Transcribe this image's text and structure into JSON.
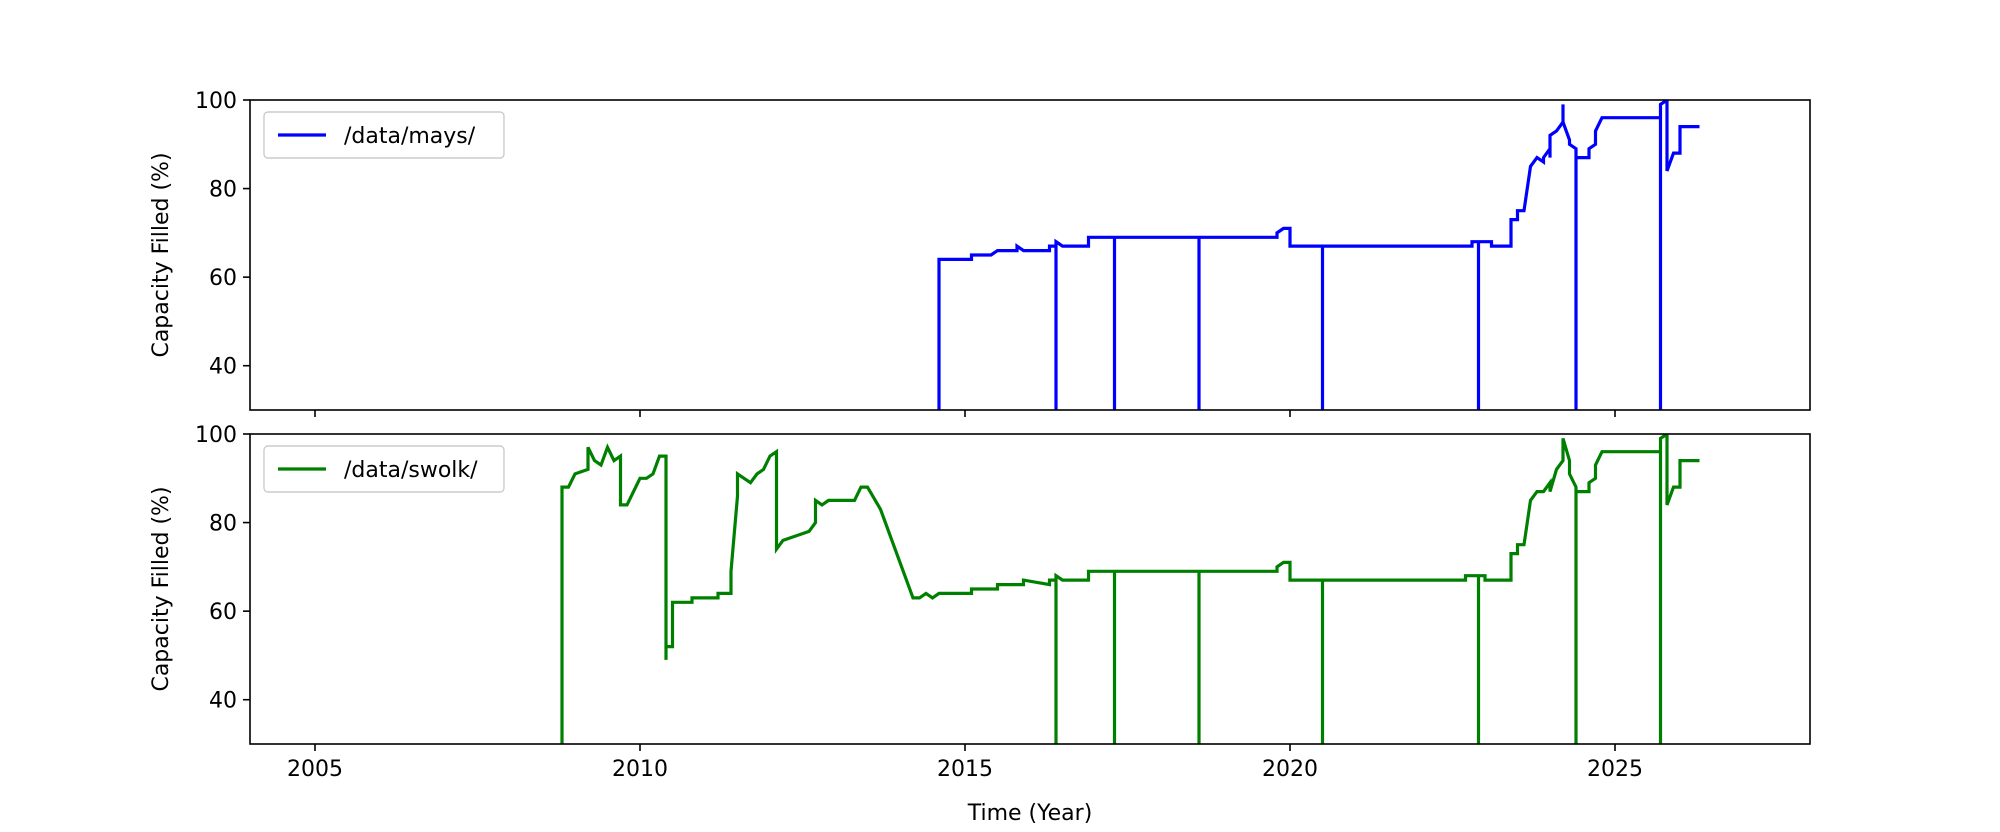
{
  "chart_data": {
    "type": "line",
    "xlabel": "Time (Year)",
    "x_ticks": [
      2005,
      2010,
      2015,
      2020,
      2025
    ],
    "xlim": [
      2004.0,
      2028.0
    ],
    "y_ticks": [
      40,
      60,
      80,
      100
    ],
    "panels": [
      {
        "ylabel": "Capacity Filled (%)",
        "ylim": [
          30,
          100
        ],
        "legend_position": "upper left",
        "grid": false,
        "series": [
          {
            "name": "/data/mays/",
            "color": "#0000ff",
            "points": [
              [
                2014.6,
                30
              ],
              [
                2014.6,
                64
              ],
              [
                2014.8,
                64
              ],
              [
                2015.1,
                64
              ],
              [
                2015.1,
                65
              ],
              [
                2015.4,
                65
              ],
              [
                2015.5,
                66
              ],
              [
                2015.8,
                66
              ],
              [
                2015.8,
                67
              ],
              [
                2015.9,
                66
              ],
              [
                2016.3,
                66
              ],
              [
                2016.3,
                67
              ],
              [
                2016.4,
                67
              ],
              [
                2016.4,
                30
              ],
              [
                2016.4,
                68
              ],
              [
                2016.5,
                67
              ],
              [
                2016.9,
                67
              ],
              [
                2016.9,
                69
              ],
              [
                2017.2,
                69
              ],
              [
                2017.3,
                69
              ],
              [
                2017.3,
                30
              ],
              [
                2017.3,
                69
              ],
              [
                2018.6,
                69
              ],
              [
                2018.6,
                30
              ],
              [
                2018.6,
                69
              ],
              [
                2019.8,
                69
              ],
              [
                2019.8,
                70
              ],
              [
                2019.9,
                71
              ],
              [
                2020.0,
                71
              ],
              [
                2020.0,
                67
              ],
              [
                2020.4,
                67
              ],
              [
                2020.5,
                67
              ],
              [
                2020.5,
                30
              ],
              [
                2020.5,
                67
              ],
              [
                2022.8,
                67
              ],
              [
                2022.8,
                68
              ],
              [
                2022.9,
                68
              ],
              [
                2022.9,
                30
              ],
              [
                2022.9,
                68
              ],
              [
                2023.1,
                68
              ],
              [
                2023.1,
                67
              ],
              [
                2023.4,
                67
              ],
              [
                2023.4,
                73
              ],
              [
                2023.5,
                73
              ],
              [
                2023.5,
                75
              ],
              [
                2023.6,
                75
              ],
              [
                2023.7,
                85
              ],
              [
                2023.8,
                87
              ],
              [
                2023.9,
                86
              ],
              [
                2023.9,
                87
              ],
              [
                2024.0,
                89
              ],
              [
                2024.0,
                87
              ],
              [
                2024.0,
                92
              ],
              [
                2024.1,
                93
              ],
              [
                2024.2,
                95
              ],
              [
                2024.2,
                99
              ],
              [
                2024.2,
                95
              ],
              [
                2024.3,
                91
              ],
              [
                2024.3,
                90
              ],
              [
                2024.4,
                89
              ],
              [
                2024.4,
                87
              ],
              [
                2024.4,
                30
              ],
              [
                2024.4,
                87
              ],
              [
                2024.6,
                87
              ],
              [
                2024.6,
                89
              ],
              [
                2024.7,
                90
              ],
              [
                2024.7,
                93
              ],
              [
                2024.8,
                96
              ],
              [
                2025.3,
                96
              ],
              [
                2025.7,
                96
              ],
              [
                2025.7,
                30
              ],
              [
                2025.7,
                99
              ],
              [
                2025.8,
                100
              ],
              [
                2025.8,
                91
              ],
              [
                2025.8,
                84
              ],
              [
                2025.9,
                88
              ],
              [
                2026.0,
                88
              ],
              [
                2026.0,
                94
              ],
              [
                2026.3,
                94
              ]
            ]
          }
        ]
      },
      {
        "ylabel": "Capacity Filled (%)",
        "ylim": [
          30,
          100
        ],
        "legend_position": "upper left",
        "grid": false,
        "series": [
          {
            "name": "/data/swolk/",
            "color": "#008000",
            "points": [
              [
                2008.8,
                30
              ],
              [
                2008.8,
                88
              ],
              [
                2008.9,
                88
              ],
              [
                2009.0,
                91
              ],
              [
                2009.2,
                92
              ],
              [
                2009.2,
                97
              ],
              [
                2009.3,
                94
              ],
              [
                2009.4,
                93
              ],
              [
                2009.5,
                97
              ],
              [
                2009.6,
                94
              ],
              [
                2009.7,
                95
              ],
              [
                2009.7,
                84
              ],
              [
                2009.8,
                84
              ],
              [
                2009.9,
                87
              ],
              [
                2010.0,
                90
              ],
              [
                2010.1,
                90
              ],
              [
                2010.2,
                91
              ],
              [
                2010.3,
                95
              ],
              [
                2010.4,
                95
              ],
              [
                2010.4,
                49
              ],
              [
                2010.4,
                52
              ],
              [
                2010.5,
                52
              ],
              [
                2010.5,
                62
              ],
              [
                2010.8,
                62
              ],
              [
                2010.8,
                63
              ],
              [
                2011.2,
                63
              ],
              [
                2011.2,
                64
              ],
              [
                2011.4,
                64
              ],
              [
                2011.4,
                69
              ],
              [
                2011.5,
                86
              ],
              [
                2011.5,
                91
              ],
              [
                2011.7,
                89
              ],
              [
                2011.8,
                91
              ],
              [
                2011.9,
                92
              ],
              [
                2012.0,
                95
              ],
              [
                2012.1,
                96
              ],
              [
                2012.1,
                74
              ],
              [
                2012.2,
                76
              ],
              [
                2012.4,
                77
              ],
              [
                2012.6,
                78
              ],
              [
                2012.7,
                80
              ],
              [
                2012.7,
                85
              ],
              [
                2012.8,
                84
              ],
              [
                2012.9,
                85
              ],
              [
                2013.3,
                85
              ],
              [
                2013.4,
                88
              ],
              [
                2013.5,
                88
              ],
              [
                2013.7,
                83
              ],
              [
                2014.2,
                63
              ],
              [
                2014.3,
                63
              ],
              [
                2014.4,
                64
              ],
              [
                2014.5,
                63
              ],
              [
                2014.6,
                64
              ],
              [
                2015.1,
                64
              ],
              [
                2015.1,
                65
              ],
              [
                2015.5,
                65
              ],
              [
                2015.5,
                66
              ],
              [
                2015.9,
                66
              ],
              [
                2015.9,
                67
              ],
              [
                2016.3,
                66
              ],
              [
                2016.3,
                67
              ],
              [
                2016.4,
                67
              ],
              [
                2016.4,
                30
              ],
              [
                2016.4,
                68
              ],
              [
                2016.5,
                67
              ],
              [
                2016.9,
                67
              ],
              [
                2016.9,
                69
              ],
              [
                2017.3,
                69
              ],
              [
                2017.3,
                30
              ],
              [
                2017.3,
                69
              ],
              [
                2018.6,
                69
              ],
              [
                2018.6,
                30
              ],
              [
                2018.6,
                69
              ],
              [
                2019.8,
                69
              ],
              [
                2019.8,
                70
              ],
              [
                2019.9,
                71
              ],
              [
                2020.0,
                71
              ],
              [
                2020.0,
                67
              ],
              [
                2020.5,
                67
              ],
              [
                2020.5,
                30
              ],
              [
                2020.5,
                67
              ],
              [
                2022.7,
                67
              ],
              [
                2022.7,
                68
              ],
              [
                2022.9,
                68
              ],
              [
                2022.9,
                30
              ],
              [
                2022.9,
                68
              ],
              [
                2023.0,
                68
              ],
              [
                2023.0,
                67
              ],
              [
                2023.4,
                67
              ],
              [
                2023.4,
                73
              ],
              [
                2023.5,
                73
              ],
              [
                2023.5,
                75
              ],
              [
                2023.6,
                75
              ],
              [
                2023.7,
                85
              ],
              [
                2023.8,
                87
              ],
              [
                2023.9,
                87
              ],
              [
                2024.0,
                89
              ],
              [
                2024.0,
                87
              ],
              [
                2024.1,
                92
              ],
              [
                2024.2,
                94
              ],
              [
                2024.2,
                99
              ],
              [
                2024.3,
                94
              ],
              [
                2024.3,
                91
              ],
              [
                2024.4,
                88
              ],
              [
                2024.4,
                86
              ],
              [
                2024.4,
                30
              ],
              [
                2024.4,
                87
              ],
              [
                2024.6,
                87
              ],
              [
                2024.6,
                89
              ],
              [
                2024.7,
                90
              ],
              [
                2024.7,
                93
              ],
              [
                2024.8,
                96
              ],
              [
                2025.7,
                96
              ],
              [
                2025.7,
                30
              ],
              [
                2025.7,
                99
              ],
              [
                2025.8,
                100
              ],
              [
                2025.8,
                91
              ],
              [
                2025.8,
                84
              ],
              [
                2025.9,
                88
              ],
              [
                2026.0,
                88
              ],
              [
                2026.0,
                94
              ],
              [
                2026.3,
                94
              ]
            ]
          }
        ]
      }
    ]
  }
}
